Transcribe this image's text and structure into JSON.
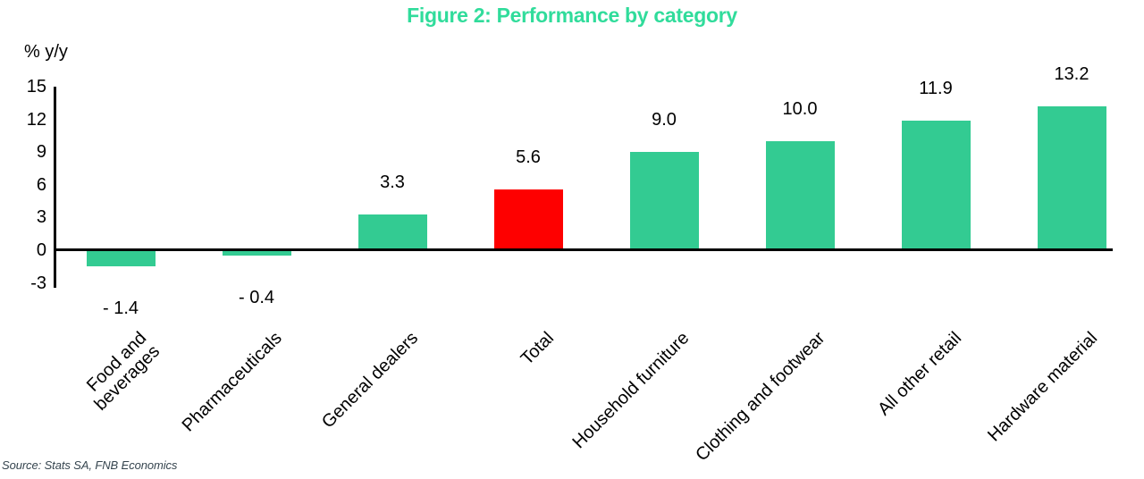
{
  "title": "Figure 2: Performance by category",
  "source": "Source: Stats SA, FNB Economics",
  "colors": {
    "title_green": "#30DC9B",
    "bar_green": "#33CB92",
    "bar_red": "#FE0000",
    "axis_black": "#000000",
    "source_text": "#36454F"
  },
  "chart_data": {
    "type": "bar",
    "title": "Figure 2: Performance by category",
    "ylabel": "% y/y",
    "xlabel": "",
    "ylim": [
      -3,
      15
    ],
    "yticks": [
      15,
      12,
      9,
      6,
      3,
      0,
      -3
    ],
    "grid": false,
    "legend": "none",
    "categories": [
      "Food and\nbeverages",
      "Pharmaceuticals",
      "General dealers",
      "Total",
      "Household furniture",
      "Clothing and footwear",
      "All other retail",
      "Hardware material"
    ],
    "values": [
      -1.4,
      -0.4,
      3.3,
      5.6,
      9.0,
      10.0,
      11.9,
      13.2
    ],
    "value_labels": [
      "- 1.4",
      "- 0.4",
      "3.3",
      "5.6",
      "9.0",
      "10.0",
      "11.9",
      "13.2"
    ],
    "bar_colors": [
      "#33CB92",
      "#33CB92",
      "#33CB92",
      "#FE0000",
      "#33CB92",
      "#33CB92",
      "#33CB92",
      "#33CB92"
    ],
    "highlight_category": "Total"
  }
}
